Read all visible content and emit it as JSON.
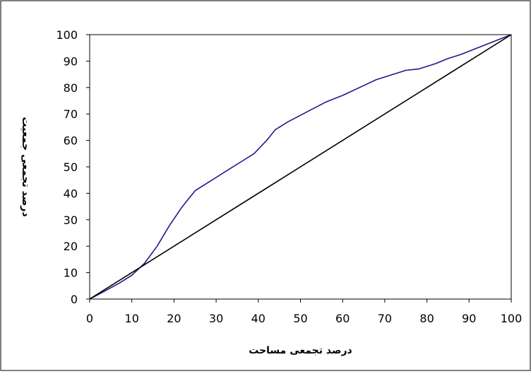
{
  "chart_data": {
    "type": "line",
    "title": "",
    "xlabel": "درصد تجمعی مساحت",
    "ylabel": "درصد تجمعی جمعیت",
    "xlim": [
      0,
      100
    ],
    "ylim": [
      0,
      100
    ],
    "x_ticks": [
      0,
      10,
      20,
      30,
      40,
      50,
      60,
      70,
      80,
      90,
      100
    ],
    "y_ticks": [
      0,
      10,
      20,
      30,
      40,
      50,
      60,
      70,
      80,
      90,
      100
    ],
    "x_tick_labels": [
      "0",
      "10",
      "20",
      "30",
      "40",
      "50",
      "60",
      "70",
      "80",
      "90",
      "100"
    ],
    "y_tick_labels": [
      "0",
      "10",
      "20",
      "30",
      "40",
      "50",
      "60",
      "70",
      "80",
      "90",
      "100"
    ],
    "grid": false,
    "legend": "none",
    "series": [
      {
        "color": "#1a1a8c",
        "points": [
          [
            0,
            0
          ],
          [
            3,
            2.5
          ],
          [
            7,
            6
          ],
          [
            10,
            9
          ],
          [
            13,
            13.5
          ],
          [
            16,
            20
          ],
          [
            19,
            28
          ],
          [
            22,
            35
          ],
          [
            25,
            41
          ],
          [
            28,
            44
          ],
          [
            30,
            46
          ],
          [
            33,
            49
          ],
          [
            36,
            52
          ],
          [
            39,
            55
          ],
          [
            42,
            60
          ],
          [
            44,
            64
          ],
          [
            47,
            67
          ],
          [
            50,
            69.5
          ],
          [
            53,
            72
          ],
          [
            56,
            74.5
          ],
          [
            60,
            77
          ],
          [
            64,
            80
          ],
          [
            68,
            83
          ],
          [
            72,
            85
          ],
          [
            75,
            86.5
          ],
          [
            78,
            87
          ],
          [
            82,
            89
          ],
          [
            85,
            91
          ],
          [
            88,
            92.5
          ],
          [
            92,
            95
          ],
          [
            96,
            97.5
          ],
          [
            100,
            100
          ]
        ]
      },
      {
        "color": "#000000",
        "points": [
          [
            0,
            0
          ],
          [
            100,
            100
          ]
        ]
      }
    ]
  }
}
